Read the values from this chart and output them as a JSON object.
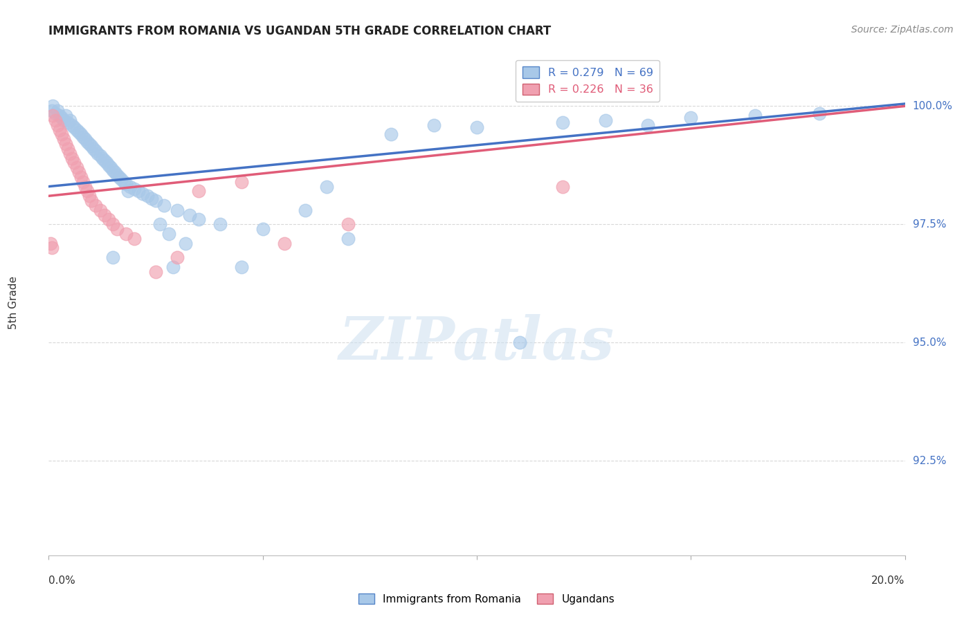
{
  "title": "IMMIGRANTS FROM ROMANIA VS UGANDAN 5TH GRADE CORRELATION CHART",
  "source": "Source: ZipAtlas.com",
  "ylabel": "5th Grade",
  "y_tick_labels": [
    "92.5%",
    "95.0%",
    "97.5%",
    "100.0%"
  ],
  "y_tick_values": [
    92.5,
    95.0,
    97.5,
    100.0
  ],
  "xlim": [
    0.0,
    20.0
  ],
  "ylim": [
    90.5,
    101.2
  ],
  "legend1_label": "R = 0.279   N = 69",
  "legend2_label": "R = 0.226   N = 36",
  "legend1_color": "#a8c8e8",
  "legend2_color": "#f0a0b0",
  "line1_color": "#4472c4",
  "line2_color": "#e05c78",
  "scatter1_color": "#a8c8e8",
  "scatter2_color": "#f0a0b0",
  "background_color": "#ffffff",
  "grid_color": "#d8d8d8",
  "blue_x": [
    0.15,
    0.2,
    0.25,
    0.3,
    0.35,
    0.4,
    0.45,
    0.5,
    0.55,
    0.6,
    0.65,
    0.7,
    0.75,
    0.8,
    0.85,
    0.9,
    0.95,
    1.0,
    1.05,
    1.1,
    1.15,
    1.2,
    1.25,
    1.3,
    1.35,
    1.4,
    1.45,
    1.5,
    1.55,
    1.6,
    1.65,
    1.7,
    1.75,
    1.8,
    1.9,
    2.0,
    2.1,
    2.2,
    2.3,
    2.4,
    2.5,
    2.7,
    3.0,
    3.3,
    3.5,
    4.0,
    5.0,
    6.5,
    8.0,
    10.0,
    12.0,
    13.0,
    14.0,
    15.0,
    16.5,
    18.0,
    1.5,
    2.8,
    4.5,
    7.0,
    3.2,
    6.0,
    11.0,
    0.1,
    0.08,
    2.6,
    1.85,
    9.0,
    2.9
  ],
  "blue_y": [
    99.85,
    99.9,
    99.8,
    99.75,
    99.7,
    99.8,
    99.65,
    99.7,
    99.6,
    99.55,
    99.5,
    99.45,
    99.4,
    99.35,
    99.3,
    99.25,
    99.2,
    99.15,
    99.1,
    99.05,
    99.0,
    98.95,
    98.9,
    98.85,
    98.8,
    98.75,
    98.7,
    98.65,
    98.6,
    98.55,
    98.5,
    98.45,
    98.4,
    98.35,
    98.3,
    98.25,
    98.2,
    98.15,
    98.1,
    98.05,
    98.0,
    97.9,
    97.8,
    97.7,
    97.6,
    97.5,
    97.4,
    98.3,
    99.4,
    99.55,
    99.65,
    99.7,
    99.6,
    99.75,
    99.8,
    99.85,
    96.8,
    97.3,
    96.6,
    97.2,
    97.1,
    97.8,
    95.0,
    100.0,
    99.9,
    97.5,
    98.2,
    99.6,
    96.6
  ],
  "pink_x": [
    0.1,
    0.15,
    0.2,
    0.25,
    0.3,
    0.35,
    0.4,
    0.45,
    0.5,
    0.55,
    0.6,
    0.65,
    0.7,
    0.75,
    0.8,
    0.85,
    0.9,
    0.95,
    1.0,
    1.1,
    1.2,
    1.4,
    1.5,
    1.6,
    1.8,
    2.0,
    3.5,
    4.5,
    7.0,
    12.0,
    2.5,
    0.05,
    0.08,
    1.3,
    5.5,
    3.0
  ],
  "pink_y": [
    99.8,
    99.7,
    99.6,
    99.5,
    99.4,
    99.3,
    99.2,
    99.1,
    99.0,
    98.9,
    98.8,
    98.7,
    98.6,
    98.5,
    98.4,
    98.3,
    98.2,
    98.1,
    98.0,
    97.9,
    97.8,
    97.6,
    97.5,
    97.4,
    97.3,
    97.2,
    98.2,
    98.4,
    97.5,
    98.3,
    96.5,
    97.1,
    97.0,
    97.7,
    97.1,
    96.8
  ],
  "line1_x0": 0.0,
  "line1_y0": 98.3,
  "line1_x1": 20.0,
  "line1_y1": 100.05,
  "line2_x0": 0.0,
  "line2_y0": 98.1,
  "line2_x1": 20.0,
  "line2_y1": 100.0
}
